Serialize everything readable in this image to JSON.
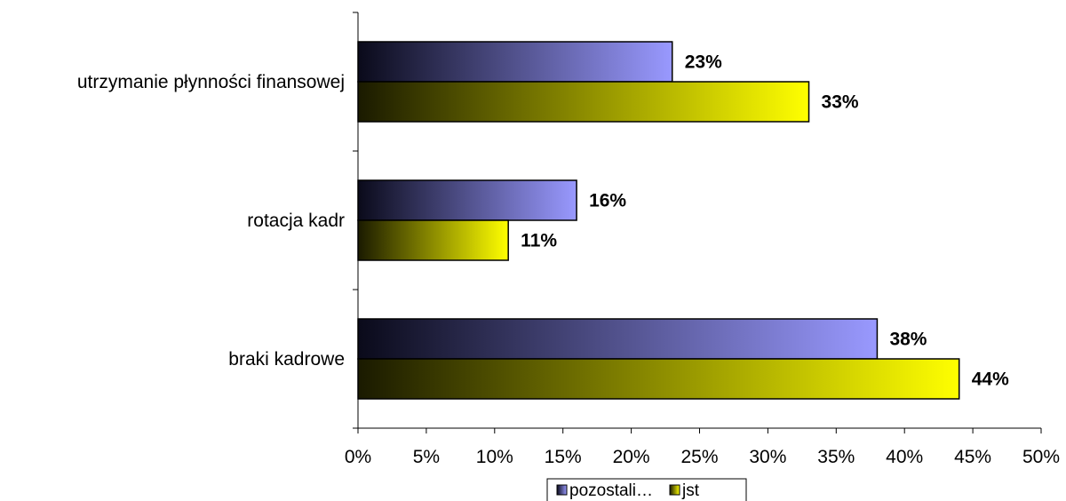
{
  "chart_data": {
    "type": "bar",
    "orientation": "horizontal",
    "categories": [
      "utrzymanie płynności finansowej",
      "rotacja kadr",
      "braki kadrowe"
    ],
    "series": [
      {
        "name": "pozostali…",
        "values": [
          23,
          16,
          38
        ],
        "value_labels": [
          "23%",
          "16%",
          "38%"
        ],
        "color_start": "#0a0a1a",
        "color_end": "#9999ff"
      },
      {
        "name": "jst",
        "values": [
          33,
          11,
          44
        ],
        "value_labels": [
          "33%",
          "11%",
          "44%"
        ],
        "color_start": "#1a1a00",
        "color_end": "#ffff00"
      }
    ],
    "xlim": [
      0,
      50
    ],
    "x_ticks": [
      0,
      5,
      10,
      15,
      20,
      25,
      30,
      35,
      40,
      45,
      50
    ],
    "x_tick_labels": [
      "0%",
      "5%",
      "10%",
      "15%",
      "20%",
      "25%",
      "30%",
      "35%",
      "40%",
      "45%",
      "50%"
    ],
    "grid": false,
    "legend_position": "bottom"
  }
}
